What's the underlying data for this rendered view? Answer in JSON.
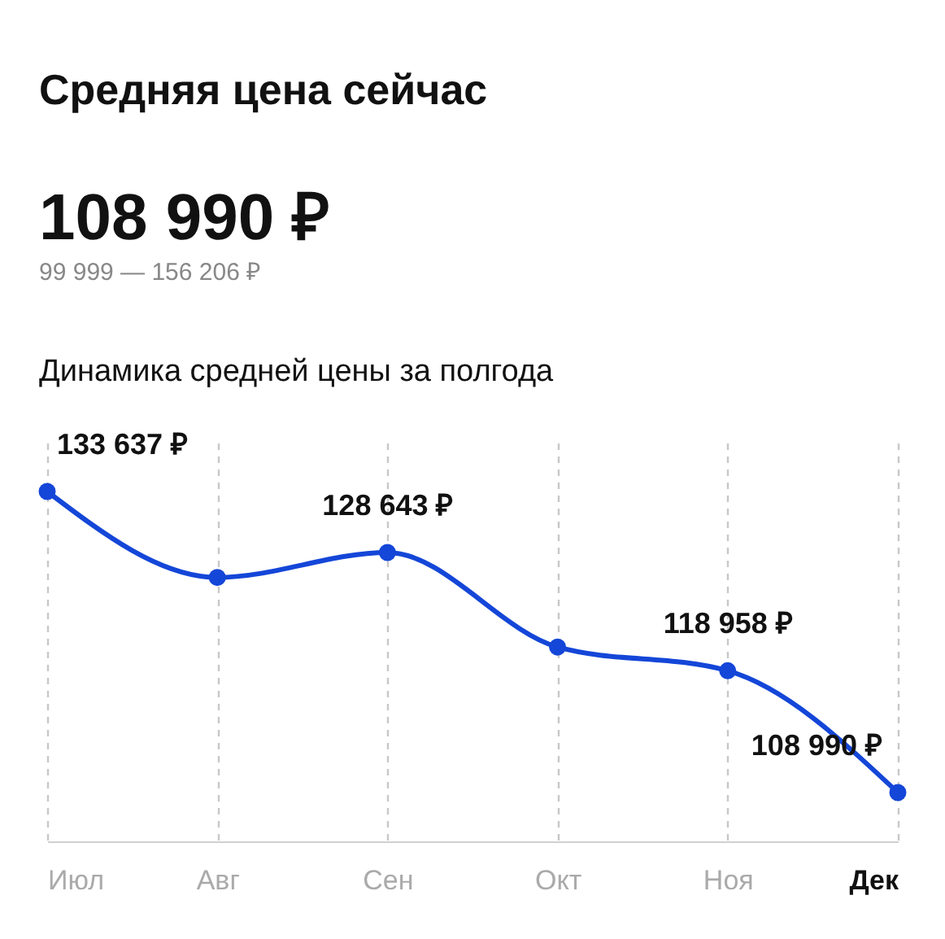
{
  "chart_data": {
    "type": "line",
    "title": "Средняя цена сейчас",
    "annotations": [
      "108 990 ₽",
      "99 999 — 156 206 ₽"
    ],
    "subtitle": "Динамика средней цены за полгода",
    "categories": [
      "Июл",
      "Авг",
      "Сен",
      "Окт",
      "Ноя",
      "Дек"
    ],
    "series": [
      {
        "color": "#1446d8",
        "values": [
          133637,
          126600,
          128643,
          120900,
          118958,
          108990
        ],
        "value_labels": [
          "133 637 ₽",
          null,
          "128 643 ₽",
          null,
          "118 958 ₽",
          "108 990 ₽"
        ]
      }
    ],
    "grid": "x",
    "marker": "circle",
    "line_style": "solid"
  }
}
